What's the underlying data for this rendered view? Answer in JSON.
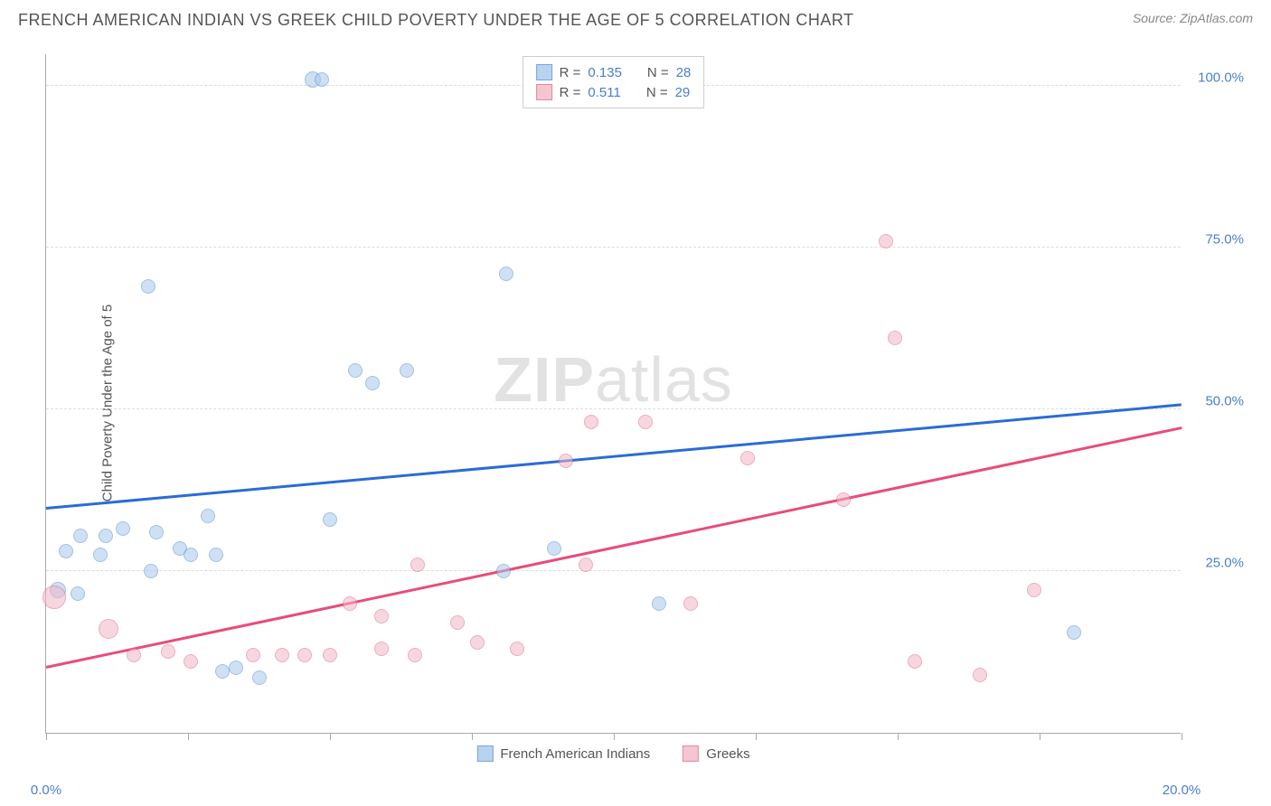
{
  "header": {
    "title": "FRENCH AMERICAN INDIAN VS GREEK CHILD POVERTY UNDER THE AGE OF 5 CORRELATION CHART",
    "source": "Source: ZipAtlas.com"
  },
  "watermark": {
    "bold": "ZIP",
    "rest": "atlas"
  },
  "chart": {
    "type": "scatter",
    "ylabel": "Child Poverty Under the Age of 5",
    "xlim": [
      0,
      20
    ],
    "ylim": [
      0,
      105
    ],
    "x_ticks": [
      0,
      2.5,
      5,
      7.5,
      10,
      12.5,
      15,
      17.5,
      20
    ],
    "x_tick_labels": {
      "0": "0.0%",
      "20": "20.0%"
    },
    "y_gridlines": [
      25,
      50,
      75,
      100
    ],
    "y_tick_labels": {
      "25": "25.0%",
      "50": "50.0%",
      "75": "75.0%",
      "100": "100.0%"
    },
    "grid_color": "#dddddd",
    "axis_color": "#aaaaaa",
    "tick_label_color": "#4a7fc9",
    "series": [
      {
        "name": "French American Indians",
        "fill": "#a7c8ec",
        "stroke": "#5b8fd0",
        "fill_opacity": 0.55,
        "trend": {
          "color": "#2b6cd4",
          "y_at_xmin": 34.5,
          "y_at_xmax": 50.5
        },
        "R": "0.135",
        "N": "28",
        "points": [
          {
            "x": 4.7,
            "y": 101,
            "r": 9
          },
          {
            "x": 4.85,
            "y": 101,
            "r": 8
          },
          {
            "x": 1.8,
            "y": 69,
            "r": 8
          },
          {
            "x": 8.1,
            "y": 71,
            "r": 8
          },
          {
            "x": 5.45,
            "y": 56,
            "r": 8
          },
          {
            "x": 5.75,
            "y": 54,
            "r": 8
          },
          {
            "x": 6.35,
            "y": 56,
            "r": 8
          },
          {
            "x": 5.0,
            "y": 33,
            "r": 8
          },
          {
            "x": 2.85,
            "y": 33.5,
            "r": 8
          },
          {
            "x": 0.6,
            "y": 30.5,
            "r": 8
          },
          {
            "x": 1.05,
            "y": 30.5,
            "r": 8
          },
          {
            "x": 1.35,
            "y": 31.5,
            "r": 8
          },
          {
            "x": 1.95,
            "y": 31,
            "r": 8
          },
          {
            "x": 0.35,
            "y": 28,
            "r": 8
          },
          {
            "x": 0.95,
            "y": 27.5,
            "r": 8
          },
          {
            "x": 2.35,
            "y": 28.5,
            "r": 8
          },
          {
            "x": 2.55,
            "y": 27.5,
            "r": 8
          },
          {
            "x": 3.0,
            "y": 27.5,
            "r": 8
          },
          {
            "x": 1.85,
            "y": 25,
            "r": 8
          },
          {
            "x": 8.95,
            "y": 28.5,
            "r": 8
          },
          {
            "x": 8.05,
            "y": 25,
            "r": 8
          },
          {
            "x": 0.2,
            "y": 22,
            "r": 9
          },
          {
            "x": 0.55,
            "y": 21.5,
            "r": 8
          },
          {
            "x": 3.1,
            "y": 9.5,
            "r": 8
          },
          {
            "x": 3.35,
            "y": 10,
            "r": 8
          },
          {
            "x": 3.75,
            "y": 8.5,
            "r": 8
          },
          {
            "x": 18.1,
            "y": 15.5,
            "r": 8
          },
          {
            "x": 10.8,
            "y": 20,
            "r": 8
          }
        ]
      },
      {
        "name": "Greeks",
        "fill": "#f2b8c6",
        "stroke": "#e06a8a",
        "fill_opacity": 0.55,
        "trend": {
          "color": "#e84c7a",
          "y_at_xmin": 10,
          "y_at_xmax": 47
        },
        "R": "0.511",
        "N": "29",
        "points": [
          {
            "x": 14.8,
            "y": 76,
            "r": 8
          },
          {
            "x": 14.95,
            "y": 61,
            "r": 8
          },
          {
            "x": 9.6,
            "y": 48,
            "r": 8
          },
          {
            "x": 10.55,
            "y": 48,
            "r": 8
          },
          {
            "x": 12.35,
            "y": 42.5,
            "r": 8
          },
          {
            "x": 9.15,
            "y": 42,
            "r": 8
          },
          {
            "x": 14.05,
            "y": 36,
            "r": 8
          },
          {
            "x": 9.5,
            "y": 26,
            "r": 8
          },
          {
            "x": 6.55,
            "y": 26,
            "r": 8
          },
          {
            "x": 11.35,
            "y": 20,
            "r": 8
          },
          {
            "x": 17.4,
            "y": 22,
            "r": 8
          },
          {
            "x": 0.15,
            "y": 21,
            "r": 13
          },
          {
            "x": 1.1,
            "y": 16,
            "r": 11
          },
          {
            "x": 5.35,
            "y": 20,
            "r": 8
          },
          {
            "x": 5.9,
            "y": 18,
            "r": 8
          },
          {
            "x": 7.25,
            "y": 17,
            "r": 8
          },
          {
            "x": 5.9,
            "y": 13,
            "r": 8
          },
          {
            "x": 6.5,
            "y": 12,
            "r": 8
          },
          {
            "x": 7.6,
            "y": 14,
            "r": 8
          },
          {
            "x": 8.3,
            "y": 13,
            "r": 8
          },
          {
            "x": 1.55,
            "y": 12,
            "r": 8
          },
          {
            "x": 2.15,
            "y": 12.5,
            "r": 8
          },
          {
            "x": 2.55,
            "y": 11,
            "r": 8
          },
          {
            "x": 3.65,
            "y": 12,
            "r": 8
          },
          {
            "x": 4.15,
            "y": 12,
            "r": 8
          },
          {
            "x": 4.55,
            "y": 12,
            "r": 8
          },
          {
            "x": 5.0,
            "y": 12,
            "r": 8
          },
          {
            "x": 15.3,
            "y": 11,
            "r": 8
          },
          {
            "x": 16.45,
            "y": 9,
            "r": 8
          }
        ]
      }
    ]
  },
  "legend_top_labels": {
    "R": "R =",
    "N": "N ="
  }
}
